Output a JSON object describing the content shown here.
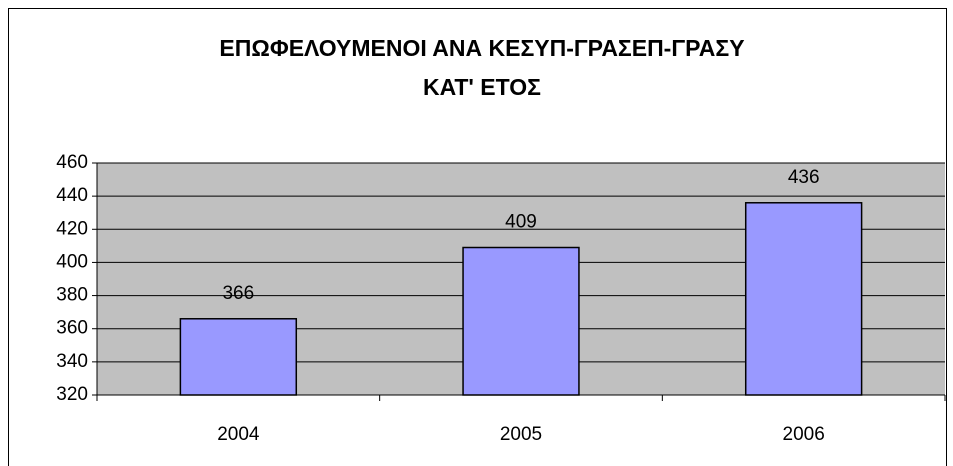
{
  "chart_data": {
    "type": "bar",
    "title": [
      "ΕΠΩΦΕΛΟΥΜΕΝΟΙ ΑΝΑ ΚΕΣΥΠ-ΓΡΑΣΕΠ-ΓΡΑΣΥ",
      "ΚΑΤ' ΕΤΟΣ"
    ],
    "categories": [
      "2004",
      "2005",
      "2006"
    ],
    "values": [
      366,
      409,
      436
    ],
    "color": "#9999ff",
    "ylim": [
      320,
      460
    ],
    "yticks": [
      320,
      340,
      360,
      380,
      400,
      420,
      440,
      460
    ],
    "grid": true
  }
}
